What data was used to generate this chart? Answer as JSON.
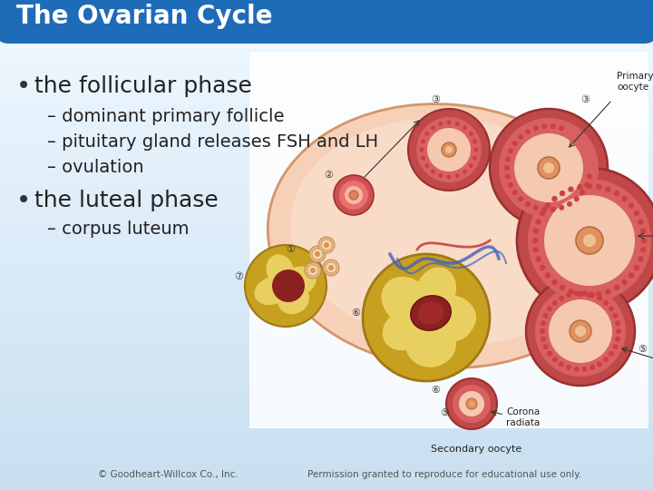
{
  "title": "The Ovarian Cycle",
  "title_color": "#ffffff",
  "title_bg_color": "#1e6bb8",
  "slide_bg_top": "#c8dff0",
  "slide_bg_bottom": "#e8f4fc",
  "bullet1": "the follicular phase",
  "sub1a": "– dominant primary follicle",
  "sub1b": "– pituitary gland releases FSH and LH",
  "sub1c": "– ovulation",
  "bullet2": "the luteal phase",
  "sub2a": "– corpus luteum",
  "footer_left": "© Goodheart-Willcox Co., Inc.",
  "footer_right": "Permission granted to reproduce for educational use only.",
  "footer_color": "#555555",
  "text_color": "#222222",
  "bullet_color": "#333333",
  "title_font_size": 20,
  "bullet_font_size": 18,
  "sub_font_size": 14,
  "footer_font_size": 7.5,
  "diagram_bg": "#ffffff",
  "ovary_outer": "#f2c4a8",
  "ovary_edge": "#d4956a",
  "follicle_red_outer": "#c04040",
  "follicle_red_inner": "#e06060",
  "follicle_red_fill": "#f5c0c0",
  "follicle_red_core": "#e08060",
  "follicle_yellow_outer": "#c8a030",
  "follicle_yellow_inner": "#e8c050",
  "follicle_small_outer": "#d4a870",
  "follicle_small_inner": "#f0d0a0",
  "follicle_small_core": "#e0a060"
}
